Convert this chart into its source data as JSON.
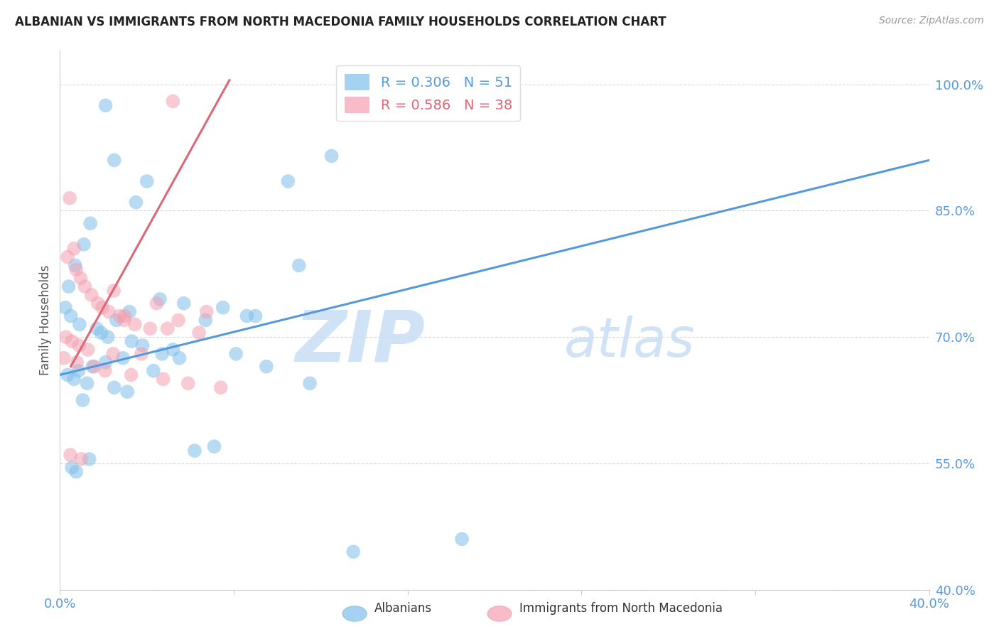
{
  "title": "ALBANIAN VS IMMIGRANTS FROM NORTH MACEDONIA FAMILY HOUSEHOLDS CORRELATION CHART",
  "source": "Source: ZipAtlas.com",
  "ylabel": "Family Households",
  "yticks": [
    40.0,
    55.0,
    70.0,
    85.0,
    100.0
  ],
  "ytick_labels": [
    "40.0%",
    "55.0%",
    "70.0%",
    "85.0%",
    "100.0%"
  ],
  "xmin": 0.0,
  "xmax": 40.0,
  "ymin": 40.0,
  "ymax": 104.0,
  "xtick_positions": [
    0.0,
    8.0,
    16.0,
    24.0,
    32.0,
    40.0
  ],
  "xtick_labels": [
    "0.0%",
    "",
    "",
    "",
    "",
    "40.0%"
  ],
  "blue_r": "0.306",
  "blue_n": "51",
  "pink_r": "0.586",
  "pink_n": "38",
  "watermark_zip": "ZIP",
  "watermark_atlas": "atlas",
  "blue_scatter_x": [
    2.1,
    2.5,
    4.0,
    3.5,
    1.4,
    1.1,
    0.7,
    0.4,
    0.25,
    0.5,
    0.9,
    1.7,
    1.9,
    2.2,
    3.3,
    3.8,
    5.2,
    5.7,
    7.5,
    9.0,
    10.5,
    12.5,
    4.7,
    2.9,
    2.1,
    1.5,
    0.85,
    0.35,
    0.65,
    1.25,
    2.5,
    3.1,
    4.3,
    5.5,
    6.7,
    8.1,
    9.5,
    11.5,
    13.5,
    18.5,
    3.2,
    2.6,
    1.35,
    0.55,
    0.75,
    1.05,
    4.6,
    6.2,
    7.1,
    8.6,
    11.0
  ],
  "blue_scatter_y": [
    97.5,
    91.0,
    88.5,
    86.0,
    83.5,
    81.0,
    78.5,
    76.0,
    73.5,
    72.5,
    71.5,
    71.0,
    70.5,
    70.0,
    69.5,
    69.0,
    68.5,
    74.0,
    73.5,
    72.5,
    88.5,
    91.5,
    68.0,
    67.5,
    67.0,
    66.5,
    66.0,
    65.5,
    65.0,
    64.5,
    64.0,
    63.5,
    66.0,
    67.5,
    72.0,
    68.0,
    66.5,
    64.5,
    44.5,
    46.0,
    73.0,
    72.0,
    55.5,
    54.5,
    54.0,
    62.5,
    74.5,
    56.5,
    57.0,
    72.5,
    78.5
  ],
  "pink_scatter_x": [
    5.2,
    0.45,
    0.65,
    0.35,
    0.75,
    0.95,
    1.15,
    1.45,
    1.75,
    1.95,
    2.25,
    2.75,
    2.95,
    3.45,
    4.15,
    4.95,
    0.28,
    0.55,
    0.88,
    1.28,
    2.45,
    3.75,
    6.4,
    0.18,
    0.78,
    1.58,
    2.08,
    3.28,
    4.75,
    5.9,
    7.4,
    0.48,
    0.98,
    2.48,
    2.98,
    4.45,
    5.45,
    6.75
  ],
  "pink_scatter_y": [
    98.0,
    86.5,
    80.5,
    79.5,
    78.0,
    77.0,
    76.0,
    75.0,
    74.0,
    73.5,
    73.0,
    72.5,
    72.0,
    71.5,
    71.0,
    71.0,
    70.0,
    69.5,
    69.0,
    68.5,
    68.0,
    68.0,
    70.5,
    67.5,
    67.0,
    66.5,
    66.0,
    65.5,
    65.0,
    64.5,
    64.0,
    56.0,
    55.5,
    75.5,
    72.5,
    74.0,
    72.0,
    73.0
  ],
  "blue_line_x": [
    0.0,
    40.0
  ],
  "blue_line_y": [
    65.5,
    91.0
  ],
  "pink_line_x": [
    0.5,
    7.8
  ],
  "pink_line_y": [
    66.5,
    100.5
  ],
  "blue_color": "#7fbfea",
  "pink_color": "#f4a0b0",
  "blue_line_color": "#5599dd",
  "pink_line_color": "#dd6677",
  "grid_color": "#d8d8d8",
  "right_tick_color": "#5599dd",
  "bottom_tick_color": "#5599dd",
  "background_color": "#ffffff",
  "title_color": "#222222",
  "source_color": "#999999",
  "ylabel_color": "#555555"
}
